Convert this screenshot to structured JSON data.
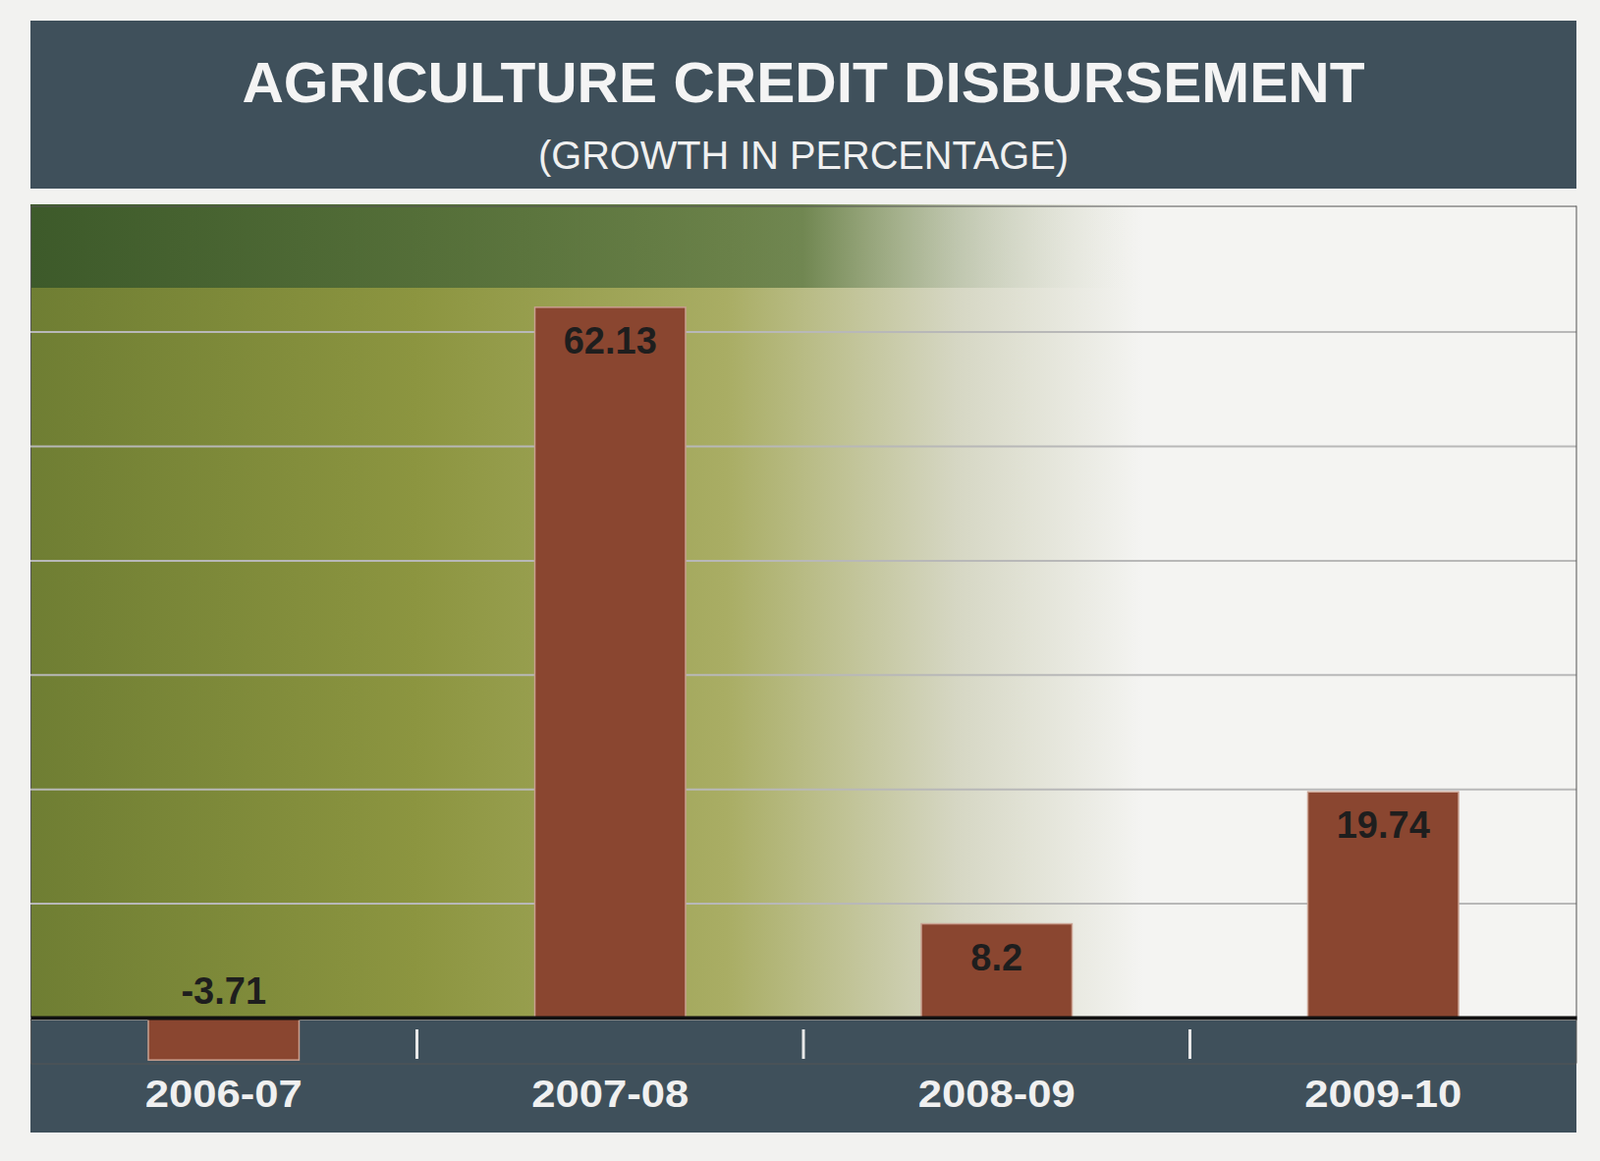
{
  "chart_data": {
    "type": "bar",
    "title": "AGRICULTURE CREDIT DISBURSEMENT",
    "subtitle": "(GROWTH IN PERCENTAGE)",
    "categories": [
      "2006-07",
      "2007-08",
      "2008-09",
      "2009-10"
    ],
    "values": [
      -3.71,
      62.13,
      8.2,
      19.74
    ],
    "color": "#8a4630",
    "ylim": [
      -4,
      71
    ],
    "yticks": [
      0,
      10,
      20,
      30,
      40,
      50,
      60
    ],
    "grid": true,
    "data_labels": true,
    "tick_labels": "x"
  }
}
